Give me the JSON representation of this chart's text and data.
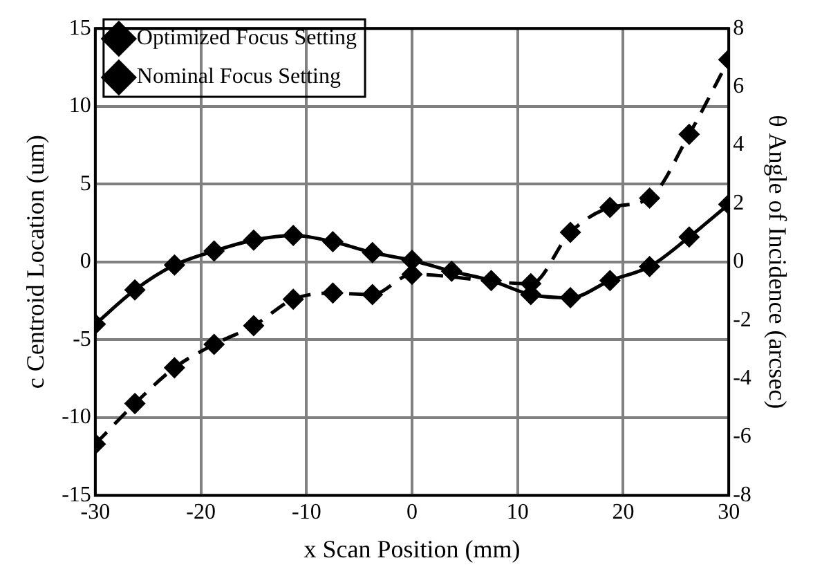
{
  "chart_data": {
    "type": "line",
    "xlabel": "x Scan Position (mm)",
    "ylabel": "c Centroid Location (um)",
    "y2label": "θ Angle of Incidence (arcsec)",
    "x": [
      -30,
      -26.25,
      -22.5,
      -18.75,
      -15,
      -11.25,
      -7.5,
      -3.75,
      0,
      3.75,
      7.5,
      11.25,
      15,
      18.75,
      22.5,
      26.25,
      30
    ],
    "series": [
      {
        "name": "Optimized Focus Setting",
        "color": "#000000",
        "line_style": "solid",
        "values": [
          -4.0,
          -1.8,
          -0.2,
          0.7,
          1.4,
          1.7,
          1.3,
          0.6,
          0.1,
          -0.6,
          -1.2,
          -2.1,
          -2.3,
          -1.2,
          -0.3,
          1.6,
          3.7
        ]
      },
      {
        "name": "Nominal Focus Setting",
        "color": "#000000",
        "line_style": "dashed",
        "values": [
          -11.7,
          -9.1,
          -6.8,
          -5.3,
          -4.1,
          -2.4,
          -2.0,
          -2.1,
          -0.8,
          null,
          null,
          -1.4,
          1.9,
          3.5,
          4.1,
          8.2,
          13.0
        ]
      }
    ],
    "xlim": [
      -30,
      30
    ],
    "xticks": [
      -30,
      -20,
      -10,
      0,
      10,
      20,
      30
    ],
    "ylim": [
      -15,
      15
    ],
    "yticks": [
      -15,
      -10,
      -5,
      0,
      5,
      10,
      15
    ],
    "y2lim": [
      -8,
      8
    ],
    "y2ticks": [
      -8,
      -6,
      -4,
      -2,
      0,
      2,
      4,
      6,
      8
    ],
    "grid": true,
    "legend": "top left",
    "marker": "diamond"
  }
}
